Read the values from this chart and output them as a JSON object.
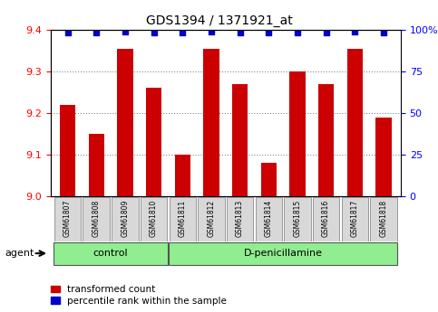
{
  "title": "GDS1394 / 1371921_at",
  "samples": [
    "GSM61807",
    "GSM61808",
    "GSM61809",
    "GSM61810",
    "GSM61811",
    "GSM61812",
    "GSM61813",
    "GSM61814",
    "GSM61815",
    "GSM61816",
    "GSM61817",
    "GSM61818"
  ],
  "red_values": [
    9.22,
    9.15,
    9.355,
    9.26,
    9.1,
    9.355,
    9.27,
    9.08,
    9.3,
    9.27,
    9.355,
    9.19
  ],
  "blue_values": [
    98,
    98,
    99,
    98,
    98,
    99,
    98,
    98,
    98,
    98,
    99,
    98
  ],
  "ylim_left": [
    9.0,
    9.4
  ],
  "ylim_right": [
    0,
    100
  ],
  "yticks_left": [
    9.0,
    9.1,
    9.2,
    9.3,
    9.4
  ],
  "yticks_right": [
    0,
    25,
    50,
    75,
    100
  ],
  "bar_color": "#cc0000",
  "dot_color": "#0000cc",
  "control_count": 4,
  "treatment_count": 8,
  "control_label": "control",
  "treatment_label": "D-penicillamine",
  "agent_label": "agent",
  "legend_red": "transformed count",
  "legend_blue": "percentile rank within the sample",
  "grid_color": "#888888",
  "plot_bg": "#ffffff",
  "group_bg": "#90ee90",
  "tick_bg": "#d8d8d8"
}
